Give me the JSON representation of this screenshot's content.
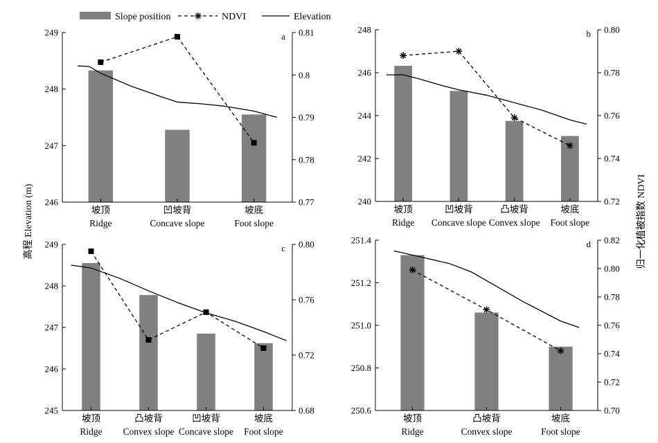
{
  "legend": {
    "bar_label": "Slope position",
    "ndvi_label": "NDVI",
    "elevation_label": "Elevation"
  },
  "y_left_title": "高程 Elevation (m)",
  "y_right_title": "归一化植被指数 NDVI",
  "colors": {
    "bar": "#808080",
    "line": "#000000"
  },
  "chart_data": [
    {
      "type": "bar",
      "panel": "a",
      "categories": [
        [
          "坡顶",
          "Ridge"
        ],
        [
          "凹坡背",
          "Concave slope"
        ],
        [
          "坡底",
          "Foot slope"
        ]
      ],
      "series": [
        {
          "name": "Slope position",
          "type": "bar",
          "axis": "left",
          "values": [
            248.33,
            247.28,
            247.55
          ]
        },
        {
          "name": "NDVI",
          "type": "line",
          "axis": "right",
          "values": [
            0.803,
            0.809,
            0.784
          ]
        },
        {
          "name": "Elevation",
          "type": "line",
          "axis": "left",
          "x": [
            -0.3,
            -0.15,
            0,
            0.4,
            0.8,
            1,
            1.3,
            1.6,
            2,
            2.3
          ],
          "values": [
            248.41,
            248.4,
            248.28,
            248.05,
            247.86,
            247.77,
            247.74,
            247.7,
            247.61,
            247.5
          ]
        }
      ],
      "ylim_left": [
        246,
        249
      ],
      "yticks_left": [
        "246",
        "247",
        "248",
        "249"
      ],
      "ylim_right": [
        0.77,
        0.81
      ],
      "yticks_right": [
        "0.77",
        "0.78",
        "0.79",
        "0.8",
        "0.81"
      ],
      "grid": false
    },
    {
      "type": "bar",
      "panel": "b",
      "categories": [
        [
          "坡顶",
          "Ridge"
        ],
        [
          "凹坡背",
          "Concave slope"
        ],
        [
          "凸坡背",
          "Convex slope"
        ],
        [
          "坡底",
          "Foot slope"
        ]
      ],
      "series": [
        {
          "name": "Slope position",
          "type": "bar",
          "axis": "left",
          "values": [
            246.32,
            245.15,
            243.75,
            243.05
          ]
        },
        {
          "name": "NDVI",
          "type": "line",
          "axis": "right",
          "values": [
            0.788,
            0.79,
            0.759,
            0.746
          ]
        },
        {
          "name": "Elevation",
          "type": "line",
          "axis": "left",
          "x": [
            -0.3,
            0,
            0.3,
            0.7,
            1,
            1.5,
            2,
            2.5,
            3,
            3.3
          ],
          "values": [
            245.9,
            245.9,
            245.7,
            245.4,
            245.2,
            244.95,
            244.6,
            244.25,
            243.8,
            243.6
          ]
        }
      ],
      "ylim_left": [
        240,
        248
      ],
      "yticks_left": [
        "240",
        "242",
        "244",
        "246",
        "248"
      ],
      "ylim_right": [
        0.72,
        0.8
      ],
      "yticks_right": [
        "0.72",
        "0.74",
        "0.76",
        "0.78",
        "0.80"
      ],
      "grid": false
    },
    {
      "type": "bar",
      "panel": "c",
      "categories": [
        [
          "坡顶",
          "Ridge"
        ],
        [
          "凸坡背",
          "Convex slope"
        ],
        [
          "凹坡背",
          "Concave slope"
        ],
        [
          "坡底",
          "Foot slope"
        ]
      ],
      "series": [
        {
          "name": "Slope position",
          "type": "bar",
          "axis": "left",
          "values": [
            248.55,
            247.78,
            246.85,
            246.62
          ]
        },
        {
          "name": "NDVI",
          "type": "line",
          "axis": "right",
          "values": [
            0.795,
            0.731,
            0.751,
            0.725
          ]
        },
        {
          "name": "Elevation",
          "type": "line",
          "axis": "left",
          "x": [
            -0.35,
            0,
            0.5,
            1,
            1.5,
            2,
            2.5,
            3,
            3.4
          ],
          "values": [
            248.5,
            248.43,
            248.18,
            247.88,
            247.6,
            247.35,
            247.15,
            246.9,
            246.68
          ]
        }
      ],
      "ylim_left": [
        245,
        249
      ],
      "yticks_left": [
        "245",
        "246",
        "247",
        "248",
        "249"
      ],
      "ylim_right": [
        0.68,
        0.8
      ],
      "yticks_right": [
        "0.68",
        "0.72",
        "0.76",
        "0.80"
      ],
      "grid": false
    },
    {
      "type": "bar",
      "panel": "d",
      "categories": [
        [
          "坡顶",
          "Ridge"
        ],
        [
          "凸坡背",
          "Convex slope"
        ],
        [
          "坡底",
          "Foot slope"
        ]
      ],
      "series": [
        {
          "name": "Slope position",
          "type": "bar",
          "axis": "left",
          "values": [
            251.33,
            251.06,
            250.9
          ]
        },
        {
          "name": "NDVI",
          "type": "line",
          "axis": "right",
          "values": [
            0.799,
            0.771,
            0.742
          ]
        },
        {
          "name": "Elevation",
          "type": "line",
          "axis": "left",
          "x": [
            -0.25,
            0,
            0.5,
            0.8,
            1,
            1.5,
            2,
            2.25
          ],
          "values": [
            251.35,
            251.33,
            251.29,
            251.25,
            251.21,
            251.11,
            251.02,
            250.99
          ]
        }
      ],
      "ylim_left": [
        250.6,
        251.4
      ],
      "yticks_left": [
        "250.6",
        "250.8",
        "251.0",
        "251.2",
        "251.4"
      ],
      "ylim_right": [
        0.7,
        0.82
      ],
      "yticks_right": [
        "0.70",
        "0.72",
        "0.74",
        "0.76",
        "0.78",
        "0.80",
        "0.82"
      ],
      "grid": false
    }
  ]
}
